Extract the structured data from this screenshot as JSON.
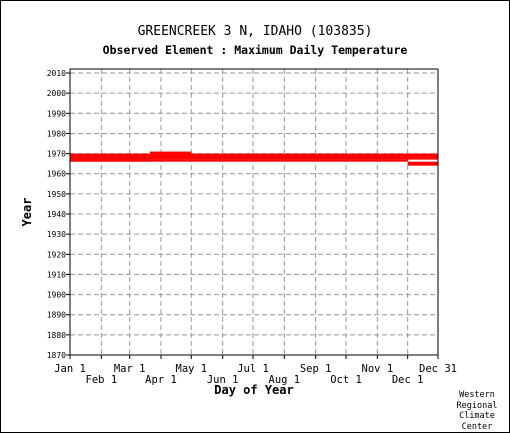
{
  "chart_data": {
    "type": "scatter",
    "title": "GREENCREEK 3 N, IDAHO   (103835)",
    "subtitle": "Observed Element : Maximum Daily Temperature",
    "xlabel": "Day of Year",
    "ylabel": "Year",
    "xlim": [
      1,
      365
    ],
    "ylim": [
      1870,
      2012
    ],
    "yticks": [
      2010,
      2000,
      1990,
      1980,
      1970,
      1960,
      1950,
      1940,
      1930,
      1920,
      1910,
      1900,
      1890,
      1880,
      1870
    ],
    "x_ticks_top": [
      {
        "label": "Jan 1",
        "day": 1
      },
      {
        "label": "Mar 1",
        "day": 60
      },
      {
        "label": "May 1",
        "day": 121
      },
      {
        "label": "Jul 1",
        "day": 182
      },
      {
        "label": "Sep 1",
        "day": 244
      },
      {
        "label": "Nov 1",
        "day": 305
      },
      {
        "label": "Dec 31",
        "day": 365
      }
    ],
    "x_ticks_bottom": [
      {
        "label": "Feb 1",
        "day": 32
      },
      {
        "label": "Apr 1",
        "day": 91
      },
      {
        "label": "Jun 1",
        "day": 152
      },
      {
        "label": "Aug 1",
        "day": 213
      },
      {
        "label": "Oct 1",
        "day": 274
      },
      {
        "label": "Dec 1",
        "day": 335
      }
    ],
    "grid": true,
    "series": [
      {
        "color": "#ff0000",
        "coverage": [
          {
            "day_start": 1,
            "day_end": 365,
            "year_start": 1967,
            "year_end": 1970
          },
          {
            "day_start": 1,
            "day_end": 80,
            "year_start": 1966,
            "year_end": 1967
          },
          {
            "day_start": 80,
            "day_end": 121,
            "year_start": 1967,
            "year_end": 1971
          },
          {
            "day_start": 1,
            "day_end": 335,
            "year_start": 1966,
            "year_end": 1967
          },
          {
            "day_start": 335,
            "day_end": 365,
            "year_start": 1964,
            "year_end": 1966
          }
        ]
      }
    ]
  },
  "credit": [
    "Western",
    "Regional",
    "Climate",
    "Center"
  ]
}
